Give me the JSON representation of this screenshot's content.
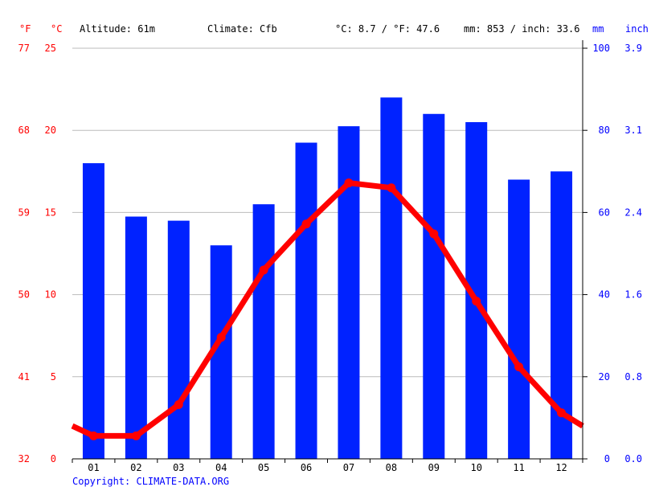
{
  "header": {
    "unit_f": "°F",
    "unit_c": "°C",
    "altitude": "Altitude: 61m",
    "climate": "Climate: Cfb",
    "temp_summary": "°C: 8.7 / °F: 47.6",
    "precip_summary": "mm: 853 / inch: 33.6",
    "unit_mm": "mm",
    "unit_inch": "inch"
  },
  "footer": {
    "copyright": "Copyright: CLIMATE-DATA.ORG"
  },
  "colors": {
    "temperature": "#ff0000",
    "precipitation": "#0022ff",
    "grid": "#bbbbbb",
    "axis": "#000000"
  },
  "axes": {
    "celsius_ticks": [
      "25",
      "20",
      "15",
      "10",
      "5",
      "0"
    ],
    "fahrenheit_ticks": [
      "77",
      "68",
      "59",
      "50",
      "41",
      "32"
    ],
    "mm_ticks": [
      "100",
      "80",
      "60",
      "40",
      "20",
      "0"
    ],
    "inch_ticks": [
      "3.9",
      "3.1",
      "2.4",
      "1.6",
      "0.8",
      "0.0"
    ]
  },
  "chart_data": {
    "type": "bar",
    "categories": [
      "01",
      "02",
      "03",
      "04",
      "05",
      "06",
      "07",
      "08",
      "09",
      "10",
      "11",
      "12"
    ],
    "ylim_celsius": [
      0,
      25
    ],
    "ylim_mm": [
      0,
      100
    ],
    "grid": true,
    "series": [
      {
        "type": "bar",
        "axis": "mm",
        "values": [
          72,
          59,
          58,
          52,
          62,
          77,
          81,
          88,
          84,
          82,
          68,
          70
        ]
      },
      {
        "type": "line",
        "axis": "celsius",
        "values": [
          1.4,
          1.4,
          3.3,
          7.4,
          11.5,
          14.3,
          16.8,
          16.5,
          13.7,
          9.6,
          5.6,
          2.8
        ],
        "edges": [
          2.0,
          2.0
        ]
      }
    ]
  }
}
